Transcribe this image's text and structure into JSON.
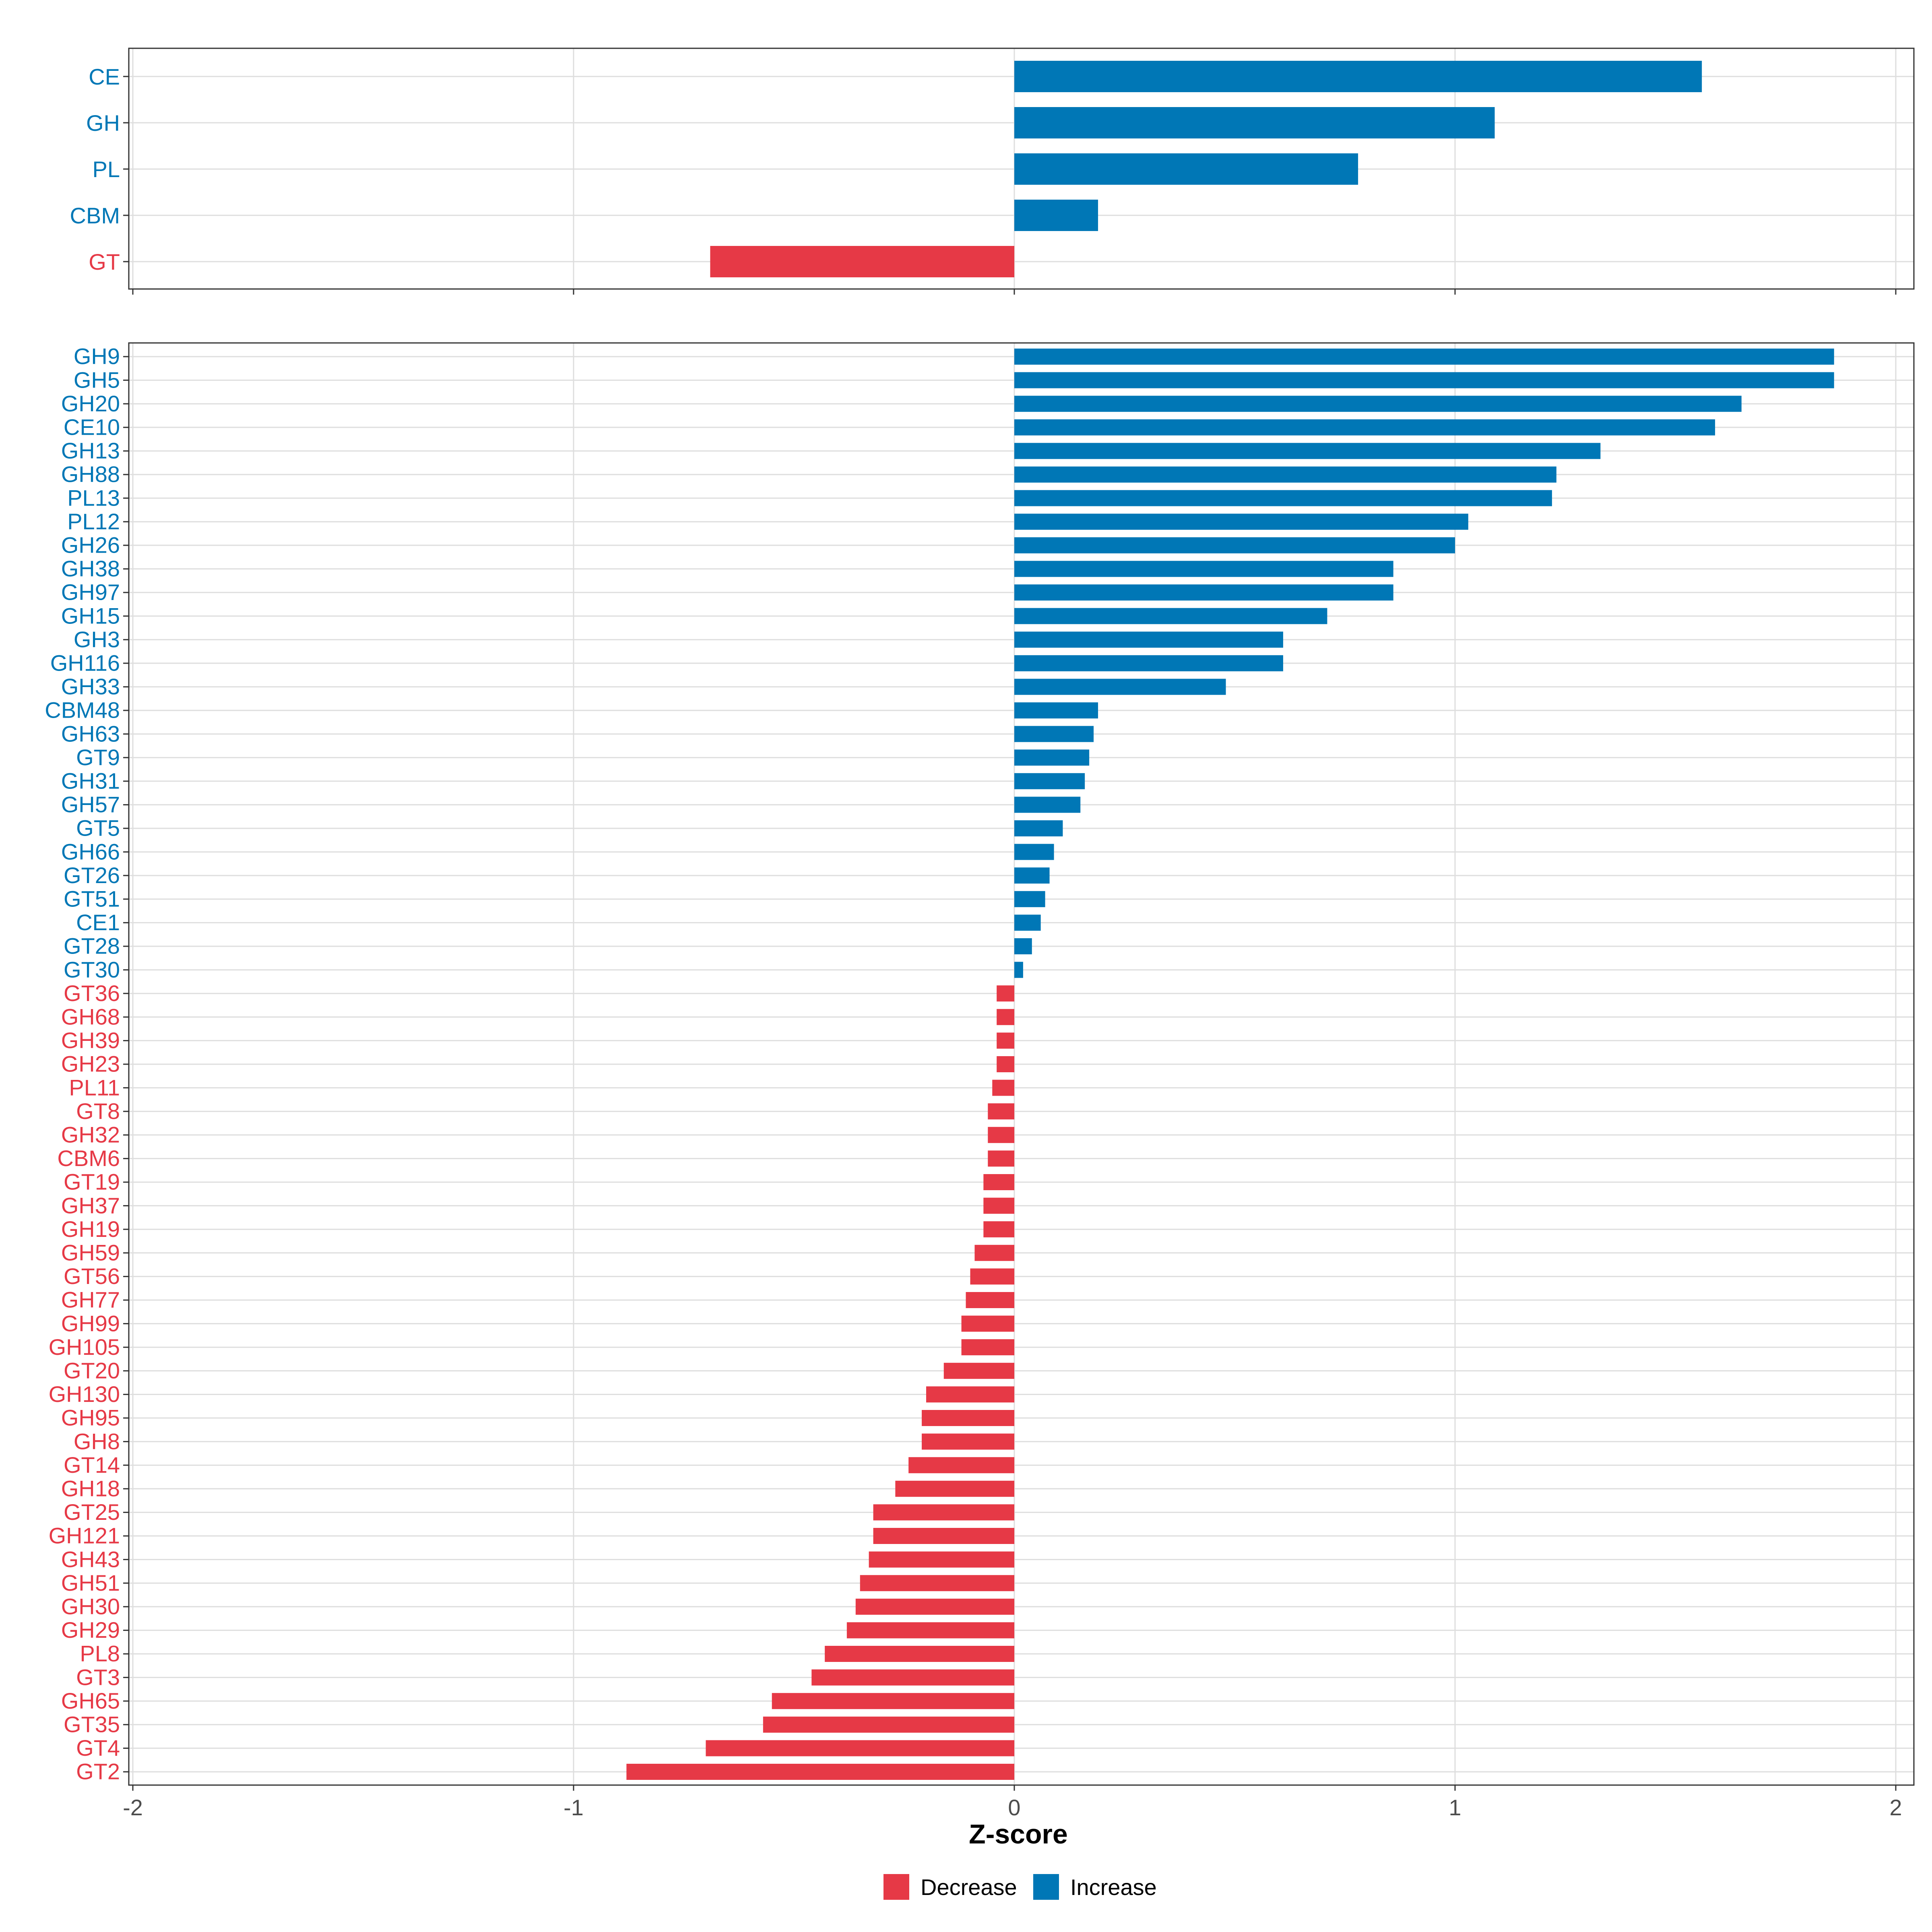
{
  "colors": {
    "increase": "#0077B6",
    "decrease": "#E63946",
    "grid": "#DEDEDE",
    "panel_border": "#333333"
  },
  "chart_data": {
    "type": "bar",
    "orientation": "horizontal",
    "xlabel": "Z-score",
    "xlim": [
      -2,
      2
    ],
    "x_ticks": [
      -2,
      -1,
      0,
      1,
      2
    ],
    "x_tick_labels": [
      "-2",
      "-1",
      "0",
      "1",
      "2"
    ],
    "legend": [
      {
        "key": "decrease",
        "label": "Decrease"
      },
      {
        "key": "increase",
        "label": "Increase"
      }
    ],
    "legend_position": "bottom-center",
    "panels": [
      {
        "name": "class",
        "categories": [
          "CE",
          "GH",
          "PL",
          "CBM",
          "GT"
        ],
        "values": [
          1.56,
          1.09,
          0.78,
          0.19,
          -0.69
        ]
      },
      {
        "name": "family",
        "categories": [
          "GH9",
          "GH5",
          "GH20",
          "CE10",
          "GH13",
          "GH88",
          "PL13",
          "PL12",
          "GH26",
          "GH38",
          "GH97",
          "GH15",
          "GH3",
          "GH116",
          "GH33",
          "CBM48",
          "GH63",
          "GT9",
          "GH31",
          "GH57",
          "GT5",
          "GH66",
          "GT26",
          "GT51",
          "CE1",
          "GT28",
          "GT30",
          "GT36",
          "GH68",
          "GH39",
          "GH23",
          "PL11",
          "GT8",
          "GH32",
          "CBM6",
          "GT19",
          "GH37",
          "GH19",
          "GH59",
          "GT56",
          "GH77",
          "GH99",
          "GH105",
          "GT20",
          "GH130",
          "GH95",
          "GH8",
          "GT14",
          "GH18",
          "GT25",
          "GH121",
          "GH43",
          "GH51",
          "GH30",
          "GH29",
          "PL8",
          "GT3",
          "GH65",
          "GT35",
          "GT4",
          "GT2"
        ],
        "values": [
          1.86,
          1.86,
          1.65,
          1.59,
          1.33,
          1.23,
          1.22,
          1.03,
          1.0,
          0.86,
          0.86,
          0.71,
          0.61,
          0.61,
          0.48,
          0.19,
          0.18,
          0.17,
          0.16,
          0.15,
          0.11,
          0.09,
          0.08,
          0.07,
          0.06,
          0.04,
          0.02,
          -0.04,
          -0.04,
          -0.04,
          -0.04,
          -0.05,
          -0.06,
          -0.06,
          -0.06,
          -0.07,
          -0.07,
          -0.07,
          -0.09,
          -0.1,
          -0.11,
          -0.12,
          -0.12,
          -0.16,
          -0.2,
          -0.21,
          -0.21,
          -0.24,
          -0.27,
          -0.32,
          -0.32,
          -0.33,
          -0.35,
          -0.36,
          -0.38,
          -0.43,
          -0.46,
          -0.55,
          -0.57,
          -0.7,
          -0.88
        ]
      }
    ]
  }
}
